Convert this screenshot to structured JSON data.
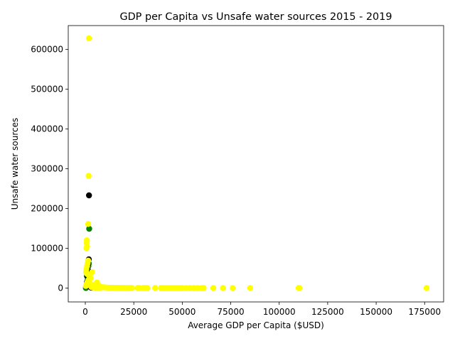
{
  "chart_data": {
    "type": "scatter",
    "title": "GDP per Capita vs Unsafe water sources 2015 - 2019",
    "xlabel": "Average GDP per Capita ($USD)",
    "ylabel": "Unsafe water sources",
    "xlim": [
      -8800,
      184800
    ],
    "ylim": [
      -35000,
      660000
    ],
    "xticks": [
      0,
      25000,
      50000,
      75000,
      100000,
      125000,
      150000,
      175000
    ],
    "yticks": [
      0,
      100000,
      200000,
      300000,
      400000,
      500000,
      600000
    ],
    "grid": false,
    "series": [
      {
        "color": "#008000",
        "points": [
          [
            300,
            0
          ],
          [
            500,
            2000
          ],
          [
            700,
            5000
          ],
          [
            900,
            12000
          ],
          [
            1100,
            18000
          ],
          [
            1300,
            25000
          ],
          [
            1500,
            40000
          ],
          [
            1600,
            55000
          ],
          [
            1800,
            62000
          ],
          [
            2000,
            149000
          ],
          [
            1200,
            8000
          ],
          [
            800,
            30000
          ]
        ]
      },
      {
        "color": "#000000",
        "points": [
          [
            1900,
            233000
          ],
          [
            1800,
            72000
          ],
          [
            1500,
            60000
          ],
          [
            1300,
            45000
          ],
          [
            1100,
            30000
          ],
          [
            900,
            15000
          ],
          [
            700,
            5000
          ],
          [
            2500,
            3000
          ],
          [
            3000,
            1000
          ]
        ]
      },
      {
        "color": "#ffff00",
        "points": [
          [
            1900,
            628000
          ],
          [
            1700,
            282000
          ],
          [
            1500,
            161000
          ],
          [
            800,
            120000
          ],
          [
            700,
            113000
          ],
          [
            900,
            105000
          ],
          [
            600,
            100000
          ],
          [
            1500,
            69000
          ],
          [
            1200,
            62000
          ],
          [
            900,
            55000
          ],
          [
            600,
            48000
          ],
          [
            400,
            40000
          ],
          [
            1000,
            35000
          ],
          [
            2000,
            30000
          ],
          [
            3500,
            40000
          ],
          [
            2800,
            25000
          ],
          [
            1600,
            20000
          ],
          [
            1100,
            15000
          ],
          [
            700,
            10000
          ],
          [
            300,
            5000
          ],
          [
            4000,
            8000
          ],
          [
            5000,
            5000
          ],
          [
            6000,
            14000
          ],
          [
            7000,
            6000
          ],
          [
            8000,
            3000
          ],
          [
            9000,
            2000
          ],
          [
            10000,
            1500
          ],
          [
            11000,
            1000
          ],
          [
            12000,
            800
          ],
          [
            13000,
            600
          ],
          [
            14000,
            500
          ],
          [
            15000,
            500
          ],
          [
            16000,
            400
          ],
          [
            17000,
            400
          ],
          [
            18000,
            300
          ],
          [
            19000,
            300
          ],
          [
            20000,
            200
          ],
          [
            21000,
            200
          ],
          [
            22000,
            150
          ],
          [
            23000,
            150
          ],
          [
            24000,
            100
          ],
          [
            27000,
            100
          ],
          [
            28000,
            100
          ],
          [
            30000,
            80
          ],
          [
            31000,
            80
          ],
          [
            32000,
            60
          ],
          [
            36000,
            50
          ],
          [
            39000,
            50
          ],
          [
            40000,
            40
          ],
          [
            41000,
            40
          ],
          [
            42000,
            30
          ],
          [
            43000,
            30
          ],
          [
            44000,
            30
          ],
          [
            45000,
            20
          ],
          [
            46000,
            20
          ],
          [
            47000,
            20
          ],
          [
            48000,
            20
          ],
          [
            49000,
            10
          ],
          [
            50000,
            10
          ],
          [
            52000,
            10
          ],
          [
            54000,
            10
          ],
          [
            56000,
            10
          ],
          [
            58000,
            10
          ],
          [
            60000,
            10
          ],
          [
            61000,
            10
          ],
          [
            66000,
            5
          ],
          [
            71000,
            5
          ],
          [
            76000,
            5
          ],
          [
            85000,
            5
          ],
          [
            110000,
            5
          ],
          [
            110500,
            5
          ],
          [
            176000,
            5
          ],
          [
            2200,
            12000
          ],
          [
            2600,
            6000
          ],
          [
            3200,
            2000
          ],
          [
            4500,
            1000
          ],
          [
            5500,
            500
          ],
          [
            6500,
            300
          ],
          [
            7500,
            200
          ]
        ]
      }
    ]
  }
}
